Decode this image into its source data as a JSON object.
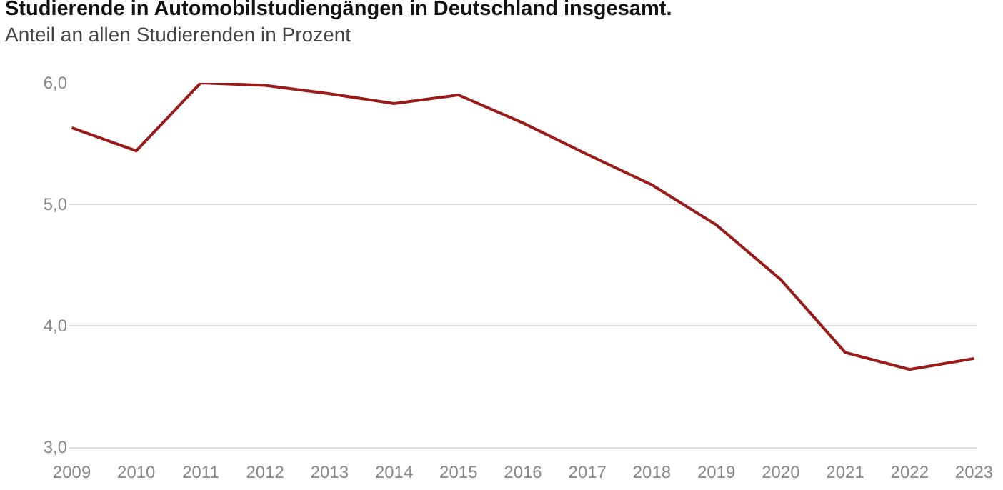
{
  "chart_data": {
    "type": "line",
    "title": "Studierende in Automobilstudiengängen in Deutschland insgesamt.",
    "subtitle": "Anteil an allen Studierenden in Prozent",
    "categories": [
      "2009",
      "2010",
      "2011",
      "2012",
      "2013",
      "2014",
      "2015",
      "2016",
      "2017",
      "2018",
      "2019",
      "2020",
      "2021",
      "2022",
      "2023"
    ],
    "series": [
      {
        "color": "#9b1b1b",
        "values": [
          5.63,
          5.44,
          6.0,
          5.98,
          5.91,
          5.83,
          5.9,
          5.67,
          5.41,
          5.16,
          4.83,
          4.38,
          3.78,
          3.64,
          3.73
        ]
      }
    ],
    "ylim": [
      3,
      6
    ],
    "yticks": [
      {
        "value": 3,
        "label": "3,0"
      },
      {
        "value": 4,
        "label": "4,0"
      },
      {
        "value": 5,
        "label": "5,0"
      },
      {
        "value": 6,
        "label": "6,0"
      }
    ],
    "grid": "y",
    "legend": false,
    "marker": "none",
    "line_style": "solid"
  }
}
